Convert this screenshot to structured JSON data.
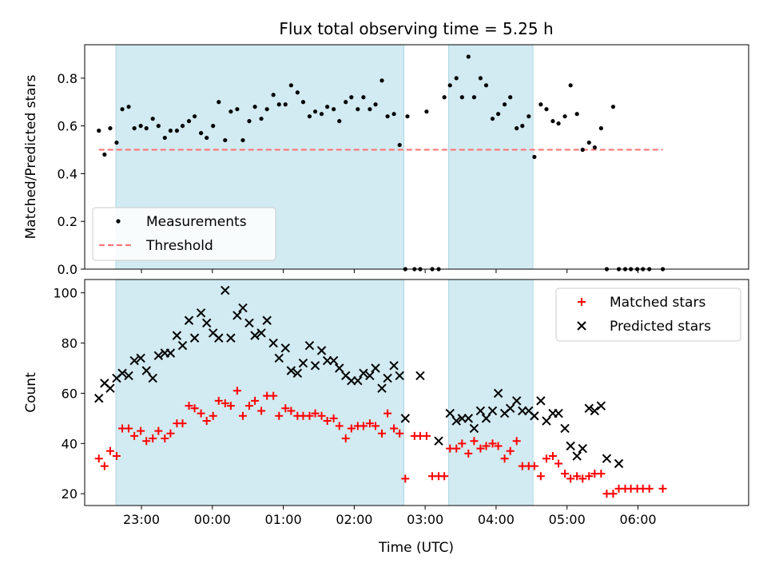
{
  "title": "Flux total observing time = 5.25 h",
  "xlabel": "Time (UTC)",
  "xticks": [
    {
      "t": 23.0,
      "label": "23:00"
    },
    {
      "t": 24.0,
      "label": "00:00"
    },
    {
      "t": 25.0,
      "label": "01:00"
    },
    {
      "t": 26.0,
      "label": "02:00"
    },
    {
      "t": 27.0,
      "label": "03:00"
    },
    {
      "t": 28.0,
      "label": "04:00"
    },
    {
      "t": 29.0,
      "label": "05:00"
    },
    {
      "t": 30.0,
      "label": "06:00"
    }
  ],
  "xlim": [
    22.2,
    31.56
  ],
  "colors": {
    "measure": "#000000",
    "threshold": "#ff6f6f",
    "matched": "#ff0000",
    "predicted": "#000000",
    "shade": "#add8e6"
  },
  "chart_data": [
    {
      "type": "scatter",
      "ylabel": "Matched/Predicted stars",
      "ylim": [
        0,
        0.94
      ],
      "yticks": [
        0.0,
        0.2,
        0.4,
        0.6,
        0.8
      ],
      "ytick_labels": [
        "0.0",
        "0.2",
        "0.4",
        "0.6",
        "0.8"
      ],
      "shaded_intervals": [
        [
          22.64,
          26.7
        ],
        [
          27.33,
          28.52
        ]
      ],
      "legend": {
        "placement": "lower-left",
        "entries": [
          "Measurements",
          "Threshold"
        ]
      },
      "threshold": {
        "name": "Threshold",
        "y": 0.5,
        "x_range": [
          22.4,
          30.35
        ]
      },
      "series": [
        {
          "name": "Measurements",
          "x": [
            22.4,
            22.48,
            22.56,
            22.65,
            22.73,
            22.82,
            22.9,
            22.99,
            23.07,
            23.16,
            23.24,
            23.33,
            23.41,
            23.5,
            23.58,
            23.67,
            23.75,
            23.84,
            23.92,
            24.01,
            24.09,
            24.18,
            24.26,
            24.35,
            24.43,
            24.52,
            24.6,
            24.69,
            24.77,
            24.86,
            24.94,
            25.03,
            25.11,
            25.2,
            25.28,
            25.37,
            25.45,
            25.54,
            25.62,
            25.71,
            25.79,
            25.88,
            25.96,
            26.05,
            26.13,
            26.22,
            26.3,
            26.39,
            26.47,
            26.56,
            26.64,
            26.72,
            26.75,
            26.85,
            26.93,
            27.02,
            27.1,
            27.19,
            27.27,
            27.35,
            27.44,
            27.52,
            27.61,
            27.69,
            27.78,
            27.86,
            27.95,
            28.03,
            28.12,
            28.2,
            28.29,
            28.37,
            28.46,
            28.54,
            28.63,
            28.71,
            28.8,
            28.88,
            28.97,
            29.05,
            29.14,
            29.22,
            29.31,
            29.39,
            29.48,
            29.56,
            29.65,
            29.73,
            29.82,
            29.9,
            29.99,
            30.07,
            30.16,
            30.35
          ],
          "y": [
            0.58,
            0.48,
            0.59,
            0.53,
            0.67,
            0.68,
            0.59,
            0.6,
            0.59,
            0.63,
            0.6,
            0.55,
            0.58,
            0.58,
            0.6,
            0.62,
            0.64,
            0.57,
            0.55,
            0.6,
            0.7,
            0.54,
            0.66,
            0.67,
            0.54,
            0.62,
            0.68,
            0.63,
            0.67,
            0.73,
            0.69,
            0.69,
            0.77,
            0.74,
            0.7,
            0.64,
            0.66,
            0.65,
            0.68,
            0.67,
            0.62,
            0.7,
            0.72,
            0.67,
            0.72,
            0.67,
            0.69,
            0.79,
            0.64,
            0.65,
            0.52,
            0.0,
            0.64,
            0.0,
            0.0,
            0.66,
            0.0,
            0.0,
            0.72,
            0.77,
            0.8,
            0.72,
            0.89,
            0.72,
            0.8,
            0.77,
            0.63,
            0.65,
            0.69,
            0.72,
            0.59,
            0.6,
            0.64,
            0.47,
            0.69,
            0.67,
            0.62,
            0.61,
            0.64,
            0.77,
            0.65,
            0.5,
            0.53,
            0.51,
            0.59,
            0.0,
            0.68,
            0.0,
            0.0,
            0.0,
            0.0,
            0.0,
            0.0,
            0.0
          ]
        }
      ]
    },
    {
      "type": "scatter",
      "ylabel": "Count",
      "ylim": [
        15.3,
        105.3
      ],
      "yticks": [
        20,
        40,
        60,
        80,
        100
      ],
      "ytick_labels": [
        "20",
        "40",
        "60",
        "80",
        "100"
      ],
      "shaded_intervals": [
        [
          22.64,
          26.7
        ],
        [
          27.33,
          28.52
        ]
      ],
      "legend": {
        "placement": "top-right",
        "entries": [
          "Matched stars",
          "Predicted stars"
        ]
      },
      "series": [
        {
          "name": "Matched stars",
          "marker": "+",
          "x": [
            22.4,
            22.48,
            22.56,
            22.65,
            22.73,
            22.82,
            22.9,
            22.99,
            23.07,
            23.16,
            23.24,
            23.33,
            23.41,
            23.5,
            23.58,
            23.67,
            23.75,
            23.84,
            23.92,
            24.01,
            24.09,
            24.18,
            24.26,
            24.35,
            24.43,
            24.52,
            24.6,
            24.69,
            24.77,
            24.86,
            24.94,
            25.03,
            25.11,
            25.2,
            25.28,
            25.37,
            25.45,
            25.54,
            25.62,
            25.71,
            25.79,
            25.88,
            25.96,
            26.05,
            26.13,
            26.22,
            26.3,
            26.39,
            26.47,
            26.56,
            26.64,
            26.72,
            26.85,
            26.93,
            27.02,
            27.1,
            27.19,
            27.27,
            27.35,
            27.44,
            27.52,
            27.61,
            27.69,
            27.78,
            27.86,
            27.95,
            28.03,
            28.12,
            28.2,
            28.29,
            28.37,
            28.46,
            28.54,
            28.63,
            28.71,
            28.8,
            28.88,
            28.97,
            29.05,
            29.14,
            29.22,
            29.31,
            29.39,
            29.48,
            29.56,
            29.65,
            29.73,
            29.82,
            29.9,
            29.99,
            30.07,
            30.16,
            30.35
          ],
          "y": [
            34,
            31,
            37,
            35,
            46,
            46,
            43,
            45,
            41,
            42,
            45,
            42,
            44,
            48,
            48,
            55,
            54,
            52,
            49,
            51,
            57,
            56,
            55,
            61,
            51,
            55,
            57,
            53,
            59,
            59,
            51,
            54,
            53,
            51,
            51,
            51,
            52,
            51,
            49,
            50,
            47,
            42,
            46,
            47,
            47,
            48,
            47,
            44,
            52,
            46,
            44,
            26,
            43,
            43,
            43,
            27,
            27,
            27,
            38,
            38,
            40,
            36,
            41,
            38,
            39,
            40,
            39,
            34,
            37,
            41,
            31,
            31,
            31,
            27,
            34,
            35,
            32,
            28,
            26,
            27,
            26,
            27,
            28,
            28,
            20,
            20,
            22,
            22,
            22,
            22,
            22,
            22,
            22
          ]
        },
        {
          "name": "Predicted stars",
          "marker": "x",
          "x": [
            22.4,
            22.48,
            22.56,
            22.65,
            22.73,
            22.82,
            22.9,
            22.99,
            23.07,
            23.16,
            23.24,
            23.33,
            23.41,
            23.5,
            23.58,
            23.67,
            23.75,
            23.84,
            23.92,
            24.01,
            24.09,
            24.18,
            24.26,
            24.35,
            24.43,
            24.52,
            24.6,
            24.69,
            24.77,
            24.86,
            24.94,
            25.03,
            25.11,
            25.2,
            25.28,
            25.37,
            25.45,
            25.54,
            25.62,
            25.71,
            25.79,
            25.88,
            25.96,
            26.05,
            26.13,
            26.22,
            26.3,
            26.39,
            26.47,
            26.56,
            26.64,
            26.72,
            26.93,
            27.19,
            27.35,
            27.44,
            27.52,
            27.61,
            27.69,
            27.78,
            27.86,
            27.95,
            28.03,
            28.12,
            28.2,
            28.29,
            28.37,
            28.46,
            28.54,
            28.63,
            28.71,
            28.8,
            28.88,
            28.97,
            29.05,
            29.14,
            29.22,
            29.31,
            29.39,
            29.48,
            29.56,
            29.73
          ],
          "y": [
            58,
            64,
            62,
            66,
            68,
            67,
            73,
            74,
            69,
            66,
            75,
            76,
            76,
            83,
            79,
            89,
            82,
            92,
            88,
            84,
            82,
            101,
            82,
            91,
            94,
            88,
            83,
            84,
            89,
            80,
            74,
            78,
            69,
            68,
            72,
            79,
            71,
            77,
            73,
            73,
            70,
            67,
            65,
            65,
            68,
            67,
            70,
            62,
            66,
            71,
            67,
            50,
            67,
            41,
            52,
            49,
            50,
            50,
            46,
            53,
            50,
            53,
            60,
            52,
            54,
            57,
            53,
            53,
            51,
            57,
            49,
            52,
            52,
            46,
            39,
            35,
            38,
            54,
            53,
            55,
            34,
            32
          ]
        }
      ]
    }
  ]
}
